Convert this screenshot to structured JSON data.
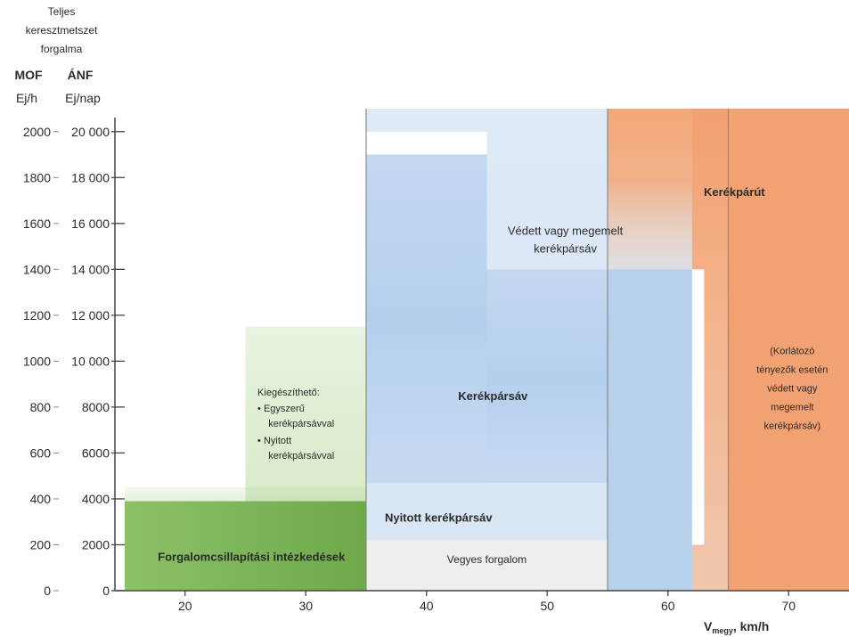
{
  "chart_data": {
    "type": "area",
    "y_header": {
      "title_lines": [
        "Teljes",
        "keresztmetszet",
        "forgalma"
      ],
      "mof_label": "MOF",
      "anf_label": "ÁNF",
      "mof_unit": "Ej/h",
      "anf_unit": "Ej/nap"
    },
    "x_ticks": [
      20,
      30,
      40,
      50,
      60,
      70
    ],
    "x_label": {
      "main": "V",
      "sub": "megy",
      "rest": ", km/h"
    },
    "xlim": [
      15,
      75
    ],
    "ylim": [
      0,
      2100
    ],
    "y_ticks_mof": [
      {
        "v": 0,
        "t": "0"
      },
      {
        "v": 200,
        "t": "200"
      },
      {
        "v": 400,
        "t": "400"
      },
      {
        "v": 600,
        "t": "600"
      },
      {
        "v": 800,
        "t": "800"
      },
      {
        "v": 1000,
        "t": "1000"
      },
      {
        "v": 1200,
        "t": "1200"
      },
      {
        "v": 1400,
        "t": "1400"
      },
      {
        "v": 1600,
        "t": "1600"
      },
      {
        "v": 1800,
        "t": "1800"
      },
      {
        "v": 2000,
        "t": "2000"
      }
    ],
    "y_ticks_anf": [
      {
        "v": 0,
        "t": "0"
      },
      {
        "v": 200,
        "t": "2000"
      },
      {
        "v": 400,
        "t": "4000"
      },
      {
        "v": 600,
        "t": "6000"
      },
      {
        "v": 800,
        "t": "8000"
      },
      {
        "v": 1000,
        "t": "10 000"
      },
      {
        "v": 1200,
        "t": "12 000"
      },
      {
        "v": 1400,
        "t": "14 000"
      },
      {
        "v": 1600,
        "t": "16 000"
      },
      {
        "v": 1800,
        "t": "18 000"
      },
      {
        "v": 2000,
        "t": "20 000"
      }
    ],
    "colors": {
      "green_dark": "#7db357",
      "green_light": "#d7ebc8",
      "green_pale": "#eef6e7",
      "grey": "#eeeeee",
      "blue_light": "#dde9f5",
      "blue_mid": "#bdd4ee",
      "blue_deep": "#a9c8ea",
      "orange_main": "#f2a173",
      "orange_light": "#f7c8a8",
      "orange_pale": "#fbe3d3",
      "divider": "#8a8a8a"
    },
    "zones": [
      {
        "name": "Forgalomcsillapítási intézkedések",
        "x": [
          15,
          35
        ],
        "y": [
          0,
          450
        ]
      },
      {
        "name": "Kiegészíthető",
        "x": [
          25,
          35
        ],
        "y": [
          0,
          1150
        ]
      },
      {
        "name": "Vegyes forgalom",
        "x": [
          35,
          55
        ],
        "y": [
          0,
          200
        ]
      },
      {
        "name": "Nyitott kerékpársáv",
        "x": [
          35,
          55
        ],
        "y": [
          200,
          450
        ]
      },
      {
        "name": "Kerékpársáv",
        "x": [
          35,
          62
        ],
        "y": [
          450,
          1900
        ]
      },
      {
        "name": "Védett vagy megemelt kerékpársáv",
        "x": [
          35,
          65
        ],
        "y": [
          1400,
          2100
        ]
      },
      {
        "name": "Kerékpárút",
        "x": [
          55,
          75
        ],
        "y": [
          0,
          2100
        ]
      }
    ],
    "labels": {
      "forgalom": "Forgalomcsillapítási intézkedések",
      "kieg_title": "Kiegészíthető:",
      "kieg_items": [
        "Egyszerű kerékpársávval",
        "Nyitott kerékpársávval"
      ],
      "vegyes": "Vegyes forgalom",
      "nyitott": "Nyitott kerékpársáv",
      "kerekparsav": "Kerékpársáv",
      "vedett_lines": [
        "Védett vagy megemelt",
        "kerékpársáv"
      ],
      "kerekparut": "Kerékpárút",
      "korlatozo_lines": [
        "(Korlátozó",
        "tényezők esetén",
        "védett vagy",
        "megemelt",
        "kerékpársáv)"
      ]
    }
  }
}
